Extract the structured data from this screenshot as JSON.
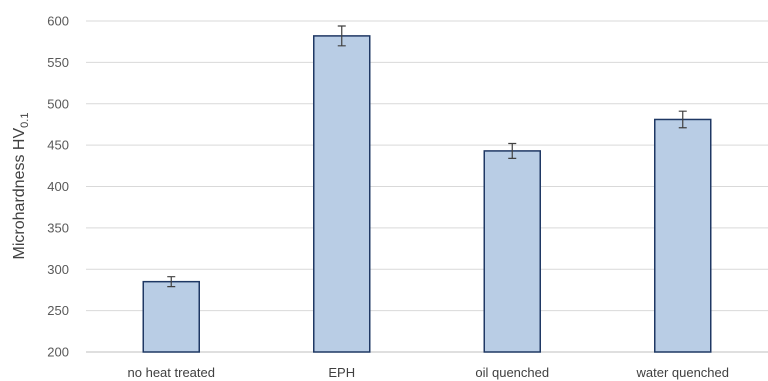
{
  "chart_data": {
    "type": "bar",
    "title": "",
    "xlabel": "",
    "ylabel": "Microhardness HV",
    "ylabel_subscript": "0.1",
    "categories": [
      "no heat treated",
      "EPH",
      "oil quenched",
      "water quenched"
    ],
    "values": [
      285,
      582,
      443,
      481
    ],
    "errors": [
      6,
      12,
      9,
      10
    ],
    "ylim": [
      200,
      600
    ],
    "yticks": [
      200,
      250,
      300,
      350,
      400,
      450,
      500,
      550,
      600
    ],
    "grid": true,
    "legend": "none",
    "colors": {
      "bar_fill": "#b9cde5",
      "bar_stroke": "#1f3864"
    }
  }
}
